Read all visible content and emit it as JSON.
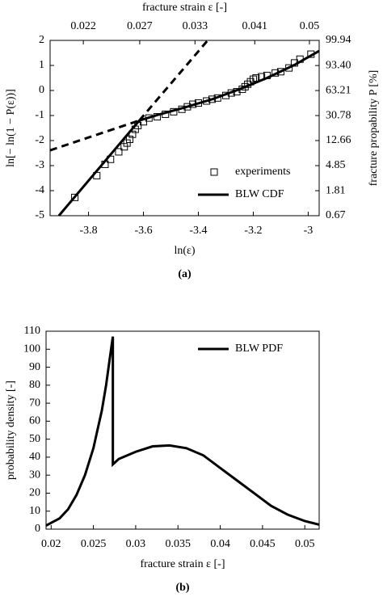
{
  "chart_data": [
    {
      "type": "line",
      "caption": "(a)",
      "xlabel": "ln(ε)",
      "ylabel": "ln[− ln(1 − P(ε))]",
      "x2label": "fracture strain ε [-]",
      "y2label": "fracture propability P [%]",
      "xlim": [
        -3.94,
        -2.96
      ],
      "xticks": [
        -3.8,
        -3.6,
        -3.4,
        -3.2,
        -3
      ],
      "ylim": [
        -5,
        2
      ],
      "yticks": [
        -5,
        -4,
        -3,
        -2,
        -1,
        0,
        1,
        2
      ],
      "x2scale": "log",
      "x2lim": [
        0.0195,
        0.0518
      ],
      "x2ticks": [
        0.022,
        0.027,
        0.033,
        0.041,
        0.05
      ],
      "y2scale": "weibull",
      "y2lim": [
        0.67,
        99.94
      ],
      "y2ticks": [
        0.67,
        1.81,
        4.85,
        12.66,
        30.78,
        63.21,
        {
          "value": 93.4,
          "label": "93.40"
        },
        99.94
      ],
      "legend": "lower right",
      "series": [
        {
          "name": "experiments",
          "color": "#000000",
          "marker": "square",
          "x": [
            -3.85,
            -3.77,
            -3.74,
            -3.72,
            -3.69,
            -3.67,
            -3.66,
            -3.65,
            -3.64,
            -3.63,
            -3.62,
            -3.6,
            -3.58,
            -3.55,
            -3.52,
            -3.49,
            -3.46,
            -3.44,
            -3.42,
            -3.4,
            -3.37,
            -3.35,
            -3.33,
            -3.3,
            -3.28,
            -3.26,
            -3.24,
            -3.23,
            -3.22,
            -3.21,
            -3.2,
            -3.19,
            -3.17,
            -3.15,
            -3.12,
            -3.1,
            -3.07,
            -3.05,
            -3.03,
            -2.99
          ],
          "values": [
            -4.27,
            -3.4,
            -2.95,
            -2.75,
            -2.45,
            -2.25,
            -2.1,
            -1.95,
            -1.75,
            -1.55,
            -1.4,
            -1.25,
            -1.1,
            -1.05,
            -0.95,
            -0.85,
            -0.75,
            -0.65,
            -0.55,
            -0.5,
            -0.42,
            -0.35,
            -0.3,
            -0.2,
            -0.1,
            -0.05,
            0.05,
            0.15,
            0.25,
            0.35,
            0.45,
            0.5,
            0.55,
            0.6,
            0.7,
            0.75,
            0.9,
            1.1,
            1.25,
            1.45
          ]
        },
        {
          "name": "BLW CDF",
          "color": "#000000",
          "x": [
            -3.908,
            -3.615,
            -3.55,
            -3.45,
            -3.35,
            -3.25,
            -3.15,
            -3.05,
            -2.96
          ],
          "values": [
            -5,
            -1.2,
            -0.98,
            -0.68,
            -0.35,
            0.05,
            0.5,
            1.02,
            1.58
          ]
        },
        {
          "color": "#000000",
          "line_style": "dashed",
          "x": [
            -3.615,
            -3.366
          ],
          "values": [
            -1.2,
            2
          ]
        },
        {
          "color": "#000000",
          "line_style": "dashed",
          "x": [
            -3.94,
            -3.615
          ],
          "values": [
            -2.39,
            -1.2
          ]
        }
      ]
    },
    {
      "type": "line",
      "caption": "(b)",
      "xlabel": "fracture strain ε [-]",
      "ylabel": "probability density [-]",
      "xlim": [
        0.0194,
        0.0517
      ],
      "xticks": [
        0.02,
        0.025,
        0.03,
        0.035,
        0.04,
        0.045,
        0.05
      ],
      "ylim": [
        0,
        110
      ],
      "yticks": [
        0,
        10,
        20,
        30,
        40,
        50,
        60,
        70,
        80,
        90,
        100,
        110
      ],
      "legend": "upper right",
      "series": [
        {
          "name": "BLW PDF",
          "color": "#000000",
          "x": [
            0.0194,
            0.021,
            0.022,
            0.023,
            0.024,
            0.025,
            0.026,
            0.0265,
            0.027,
            0.0273,
            0.0273,
            0.028,
            0.03,
            0.032,
            0.034,
            0.036,
            0.038,
            0.04,
            0.042,
            0.044,
            0.046,
            0.048,
            0.05,
            0.0517
          ],
          "values": [
            2,
            6,
            11,
            19,
            30,
            45,
            66,
            80,
            97,
            107,
            36,
            39,
            43,
            46,
            46.5,
            45,
            41,
            34,
            27,
            20,
            13,
            8,
            4.5,
            2.5
          ]
        }
      ]
    }
  ]
}
